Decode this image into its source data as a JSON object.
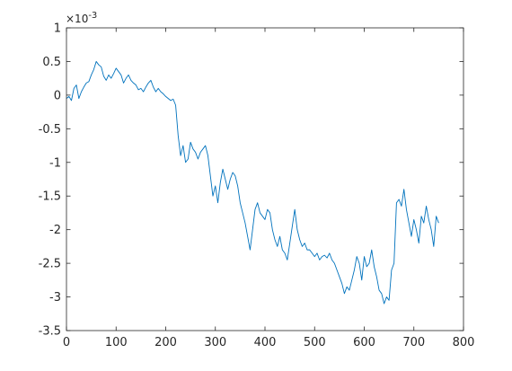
{
  "chart_data": {
    "type": "line",
    "title": "",
    "xlabel": "",
    "ylabel": "",
    "y_exponent_label": "×10",
    "y_exponent_power": "-3",
    "y_scale_factor": 0.001,
    "xlim": [
      0,
      800
    ],
    "ylim": [
      -3.5,
      1
    ],
    "x_ticks": [
      0,
      100,
      200,
      300,
      400,
      500,
      600,
      700,
      800
    ],
    "y_ticks": [
      1,
      0.5,
      0,
      -0.5,
      -1,
      -1.5,
      -2,
      -2.5,
      -3,
      -3.5
    ],
    "x_tick_labels": [
      "0",
      "100",
      "200",
      "300",
      "400",
      "500",
      "600",
      "700",
      "800"
    ],
    "y_tick_labels": [
      "1",
      "0.5",
      "0",
      "-0.5",
      "-1",
      "-1.5",
      "-2",
      "-2.5",
      "-3",
      "-3.5"
    ],
    "grid": false,
    "series_color": "#0072BD",
    "axis_color": "#262626",
    "series": [
      {
        "x": [
          0,
          5,
          10,
          15,
          20,
          25,
          30,
          35,
          40,
          45,
          50,
          55,
          60,
          65,
          70,
          75,
          80,
          85,
          90,
          95,
          100,
          105,
          110,
          115,
          120,
          125,
          130,
          135,
          140,
          145,
          150,
          155,
          160,
          165,
          170,
          175,
          180,
          185,
          190,
          195,
          200,
          205,
          210,
          215,
          220,
          225,
          230,
          235,
          240,
          245,
          250,
          255,
          260,
          265,
          270,
          275,
          280,
          285,
          290,
          295,
          300,
          305,
          310,
          315,
          320,
          325,
          330,
          335,
          340,
          345,
          350,
          355,
          360,
          365,
          370,
          375,
          380,
          385,
          390,
          395,
          400,
          405,
          410,
          415,
          420,
          425,
          430,
          435,
          440,
          445,
          450,
          455,
          460,
          465,
          470,
          475,
          480,
          485,
          490,
          495,
          500,
          505,
          510,
          515,
          520,
          525,
          530,
          535,
          540,
          545,
          550,
          555,
          560,
          565,
          570,
          575,
          580,
          585,
          590,
          595,
          600,
          605,
          610,
          615,
          620,
          625,
          630,
          635,
          640,
          645,
          650,
          655,
          660,
          665,
          670,
          675,
          680,
          685,
          690,
          695,
          700,
          705,
          710,
          715,
          720,
          725,
          730,
          735,
          740,
          745,
          750
        ],
        "values": [
          -0.05,
          -0.02,
          -0.08,
          0.1,
          0.15,
          -0.05,
          0.05,
          0.12,
          0.18,
          0.2,
          0.3,
          0.38,
          0.5,
          0.45,
          0.42,
          0.28,
          0.22,
          0.3,
          0.25,
          0.32,
          0.4,
          0.35,
          0.3,
          0.18,
          0.25,
          0.3,
          0.22,
          0.18,
          0.15,
          0.08,
          0.1,
          0.05,
          0.12,
          0.18,
          0.22,
          0.12,
          0.05,
          0.1,
          0.05,
          0.02,
          -0.02,
          -0.05,
          -0.08,
          -0.06,
          -0.15,
          -0.6,
          -0.9,
          -0.75,
          -1.0,
          -0.95,
          -0.7,
          -0.8,
          -0.85,
          -0.95,
          -0.85,
          -0.8,
          -0.75,
          -0.9,
          -1.2,
          -1.5,
          -1.35,
          -1.6,
          -1.3,
          -1.1,
          -1.25,
          -1.4,
          -1.25,
          -1.15,
          -1.2,
          -1.35,
          -1.6,
          -1.75,
          -1.9,
          -2.1,
          -2.3,
          -2.0,
          -1.7,
          -1.6,
          -1.75,
          -1.8,
          -1.85,
          -1.7,
          -1.75,
          -2.0,
          -2.15,
          -2.25,
          -2.1,
          -2.3,
          -2.35,
          -2.45,
          -2.2,
          -1.95,
          -1.7,
          -2.0,
          -2.15,
          -2.25,
          -2.2,
          -2.3,
          -2.3,
          -2.35,
          -2.4,
          -2.35,
          -2.45,
          -2.4,
          -2.38,
          -2.42,
          -2.35,
          -2.45,
          -2.5,
          -2.6,
          -2.7,
          -2.8,
          -2.95,
          -2.85,
          -2.9,
          -2.75,
          -2.6,
          -2.4,
          -2.5,
          -2.75,
          -2.4,
          -2.55,
          -2.5,
          -2.3,
          -2.55,
          -2.7,
          -2.9,
          -2.95,
          -3.1,
          -3.0,
          -3.05,
          -2.6,
          -2.5,
          -1.6,
          -1.55,
          -1.65,
          -1.4,
          -1.7,
          -1.9,
          -2.1,
          -1.85,
          -2.0,
          -2.2,
          -1.8,
          -1.9,
          -1.65,
          -1.85,
          -2.0,
          -2.25,
          -1.8,
          -1.9
        ]
      }
    ]
  }
}
